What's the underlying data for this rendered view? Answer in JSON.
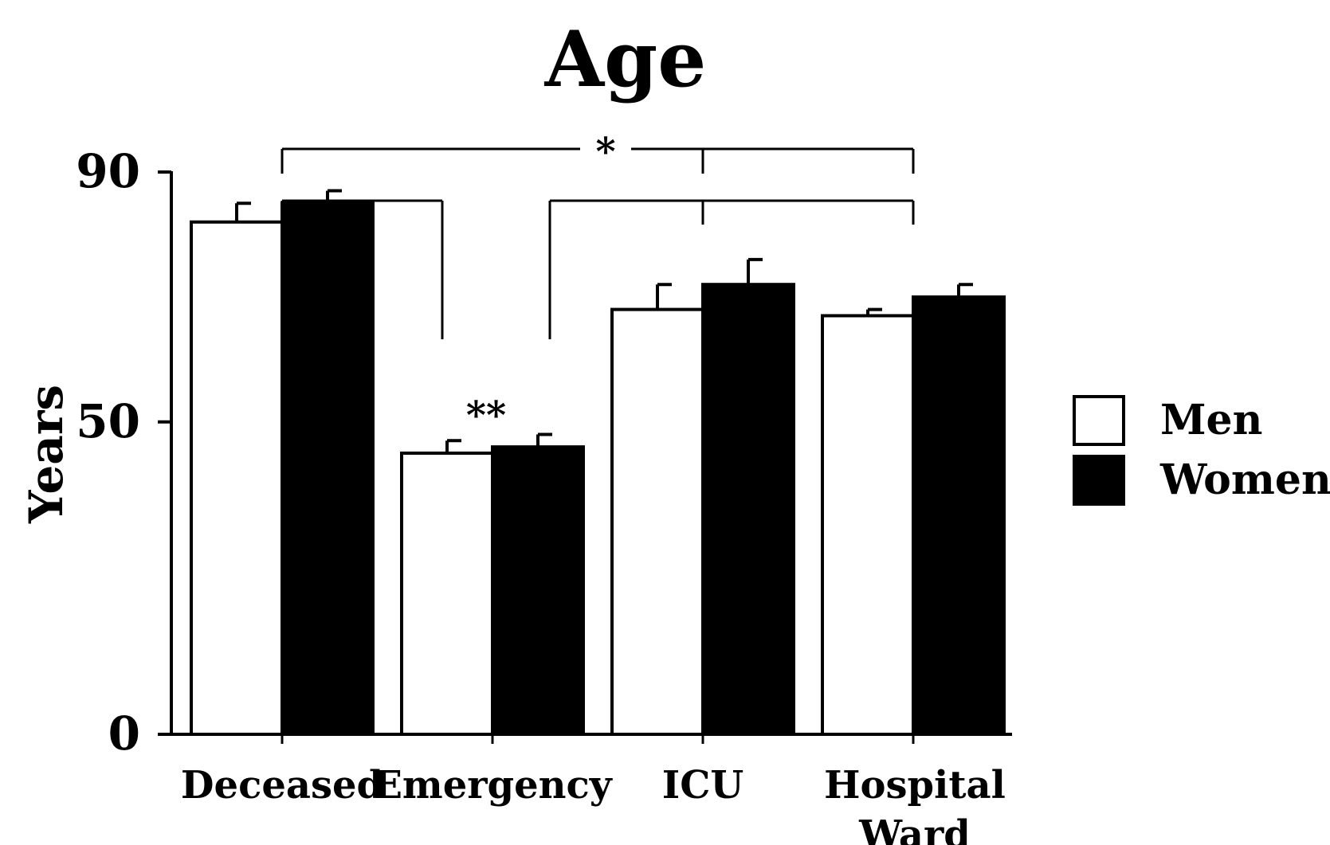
{
  "chart_data": {
    "type": "bar",
    "title": "Age",
    "ylabel": "Years",
    "xlabel": "",
    "categories": [
      "Deceased",
      "Emergency",
      "ICU",
      "Hospital Ward"
    ],
    "category_lines": [
      [
        "Deceased"
      ],
      [
        "Emergency"
      ],
      [
        "ICU"
      ],
      [
        "Hospital",
        "Ward"
      ]
    ],
    "ylim": [
      0,
      90
    ],
    "yticks": [
      "0",
      "50",
      "90"
    ],
    "series": [
      {
        "name": "Men",
        "color": "#ffffff",
        "values": [
          82,
          45,
          68,
          67
        ],
        "errors": [
          3,
          2,
          4,
          1
        ]
      },
      {
        "name": "Women",
        "color": "#000000",
        "values": [
          85,
          46,
          72,
          70
        ],
        "errors": [
          2,
          2,
          4,
          2
        ]
      }
    ],
    "legend": {
      "position": "right",
      "entries": [
        "Men",
        "Women"
      ]
    },
    "annotations": [
      {
        "text": "**",
        "category": "Emergency"
      },
      {
        "text": "*",
        "type": "significance-bracket",
        "from": "Deceased",
        "to": [
          "ICU",
          "Hospital Ward"
        ]
      }
    ]
  }
}
